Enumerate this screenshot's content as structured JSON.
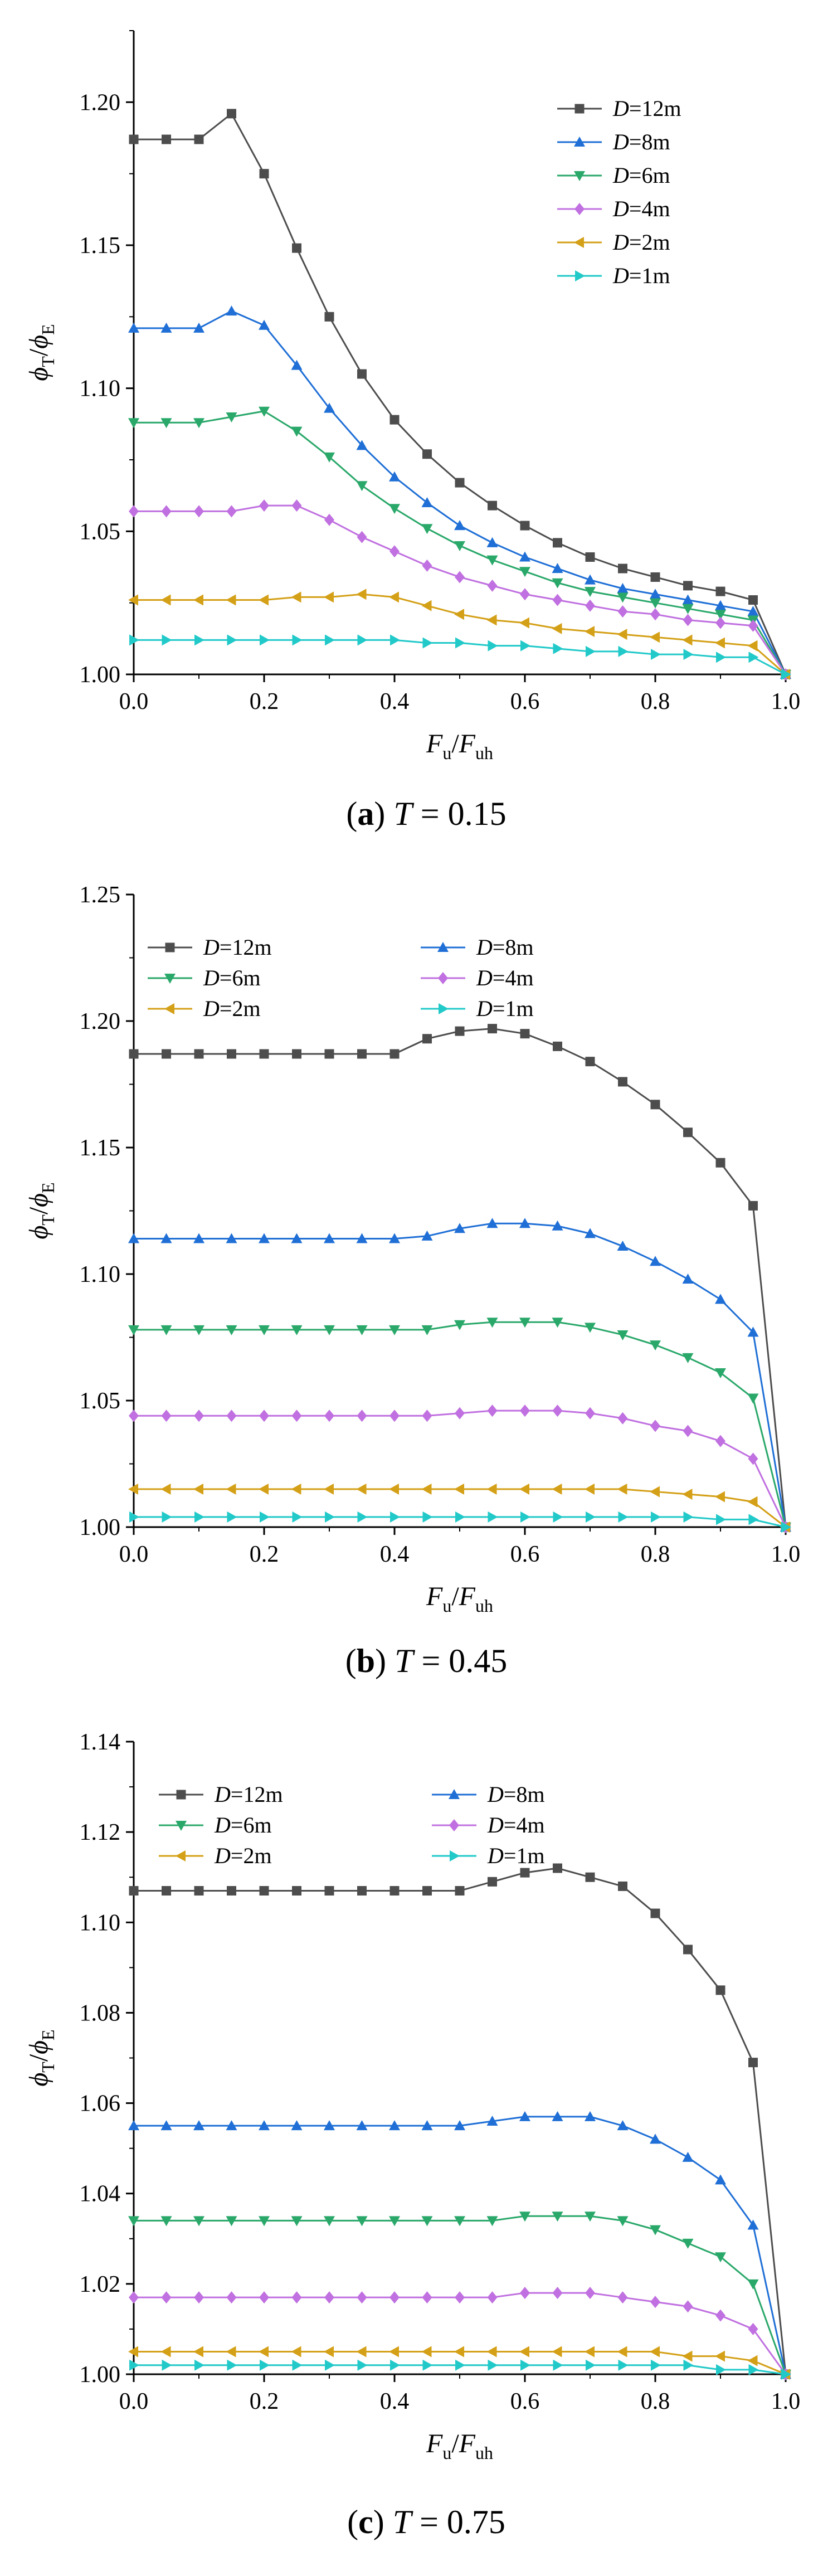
{
  "figure": {
    "captions": [
      {
        "letter": "a",
        "rest": "T = 0.15"
      },
      {
        "letter": "b",
        "rest": "T = 0.45"
      },
      {
        "letter": "c",
        "rest": "T = 0.75"
      }
    ]
  },
  "chart_data": [
    {
      "type": "line",
      "xlabel": "Fu/Fuh",
      "ylabel": "ϕT/ϕE",
      "xlim": [
        0.0,
        1.0
      ],
      "ylim": [
        1.0,
        1.225
      ],
      "xticks": [
        0.0,
        0.2,
        0.4,
        0.6,
        0.8,
        1.0
      ],
      "yticks": [
        1.0,
        1.05,
        1.1,
        1.15,
        1.2
      ],
      "legend": "top-right, one column",
      "x": [
        0.0,
        0.05,
        0.1,
        0.15,
        0.2,
        0.25,
        0.3,
        0.35,
        0.4,
        0.45,
        0.5,
        0.55,
        0.6,
        0.65,
        0.7,
        0.75,
        0.8,
        0.85,
        0.9,
        0.95,
        1.0
      ],
      "series": [
        {
          "name": "D=12m",
          "color": "#4d4d4d",
          "marker": "square",
          "values": [
            1.187,
            1.187,
            1.187,
            1.196,
            1.175,
            1.149,
            1.125,
            1.105,
            1.089,
            1.077,
            1.067,
            1.059,
            1.052,
            1.046,
            1.041,
            1.037,
            1.034,
            1.031,
            1.029,
            1.026,
            1.0
          ]
        },
        {
          "name": "D=8m",
          "color": "#1f6fd6",
          "marker": "triangle-up",
          "values": [
            1.121,
            1.121,
            1.121,
            1.127,
            1.122,
            1.108,
            1.093,
            1.08,
            1.069,
            1.06,
            1.052,
            1.046,
            1.041,
            1.037,
            1.033,
            1.03,
            1.028,
            1.026,
            1.024,
            1.022,
            1.0
          ]
        },
        {
          "name": "D=6m",
          "color": "#2aa86a",
          "marker": "triangle-down",
          "values": [
            1.088,
            1.088,
            1.088,
            1.09,
            1.092,
            1.085,
            1.076,
            1.066,
            1.058,
            1.051,
            1.045,
            1.04,
            1.036,
            1.032,
            1.029,
            1.027,
            1.025,
            1.023,
            1.021,
            1.019,
            1.0
          ]
        },
        {
          "name": "D=4m",
          "color": "#c070e0",
          "marker": "diamond",
          "values": [
            1.057,
            1.057,
            1.057,
            1.057,
            1.059,
            1.059,
            1.054,
            1.048,
            1.043,
            1.038,
            1.034,
            1.031,
            1.028,
            1.026,
            1.024,
            1.022,
            1.021,
            1.019,
            1.018,
            1.017,
            1.0
          ]
        },
        {
          "name": "D=2m",
          "color": "#d4a017",
          "marker": "triangle-left",
          "values": [
            1.026,
            1.026,
            1.026,
            1.026,
            1.026,
            1.027,
            1.027,
            1.028,
            1.027,
            1.024,
            1.021,
            1.019,
            1.018,
            1.016,
            1.015,
            1.014,
            1.013,
            1.012,
            1.011,
            1.01,
            1.0
          ]
        },
        {
          "name": "D=1m",
          "color": "#22c9c9",
          "marker": "triangle-right",
          "values": [
            1.012,
            1.012,
            1.012,
            1.012,
            1.012,
            1.012,
            1.012,
            1.012,
            1.012,
            1.011,
            1.011,
            1.01,
            1.01,
            1.009,
            1.008,
            1.008,
            1.007,
            1.007,
            1.006,
            1.006,
            1.0
          ]
        }
      ]
    },
    {
      "type": "line",
      "xlabel": "Fu/Fuh",
      "ylabel": "ϕT/ϕE",
      "xlim": [
        0.0,
        1.0
      ],
      "ylim": [
        1.0,
        1.25
      ],
      "xticks": [
        0.0,
        0.2,
        0.4,
        0.6,
        0.8,
        1.0
      ],
      "yticks": [
        1.0,
        1.05,
        1.1,
        1.15,
        1.2,
        1.25
      ],
      "legend": "top, two columns",
      "x": [
        0.0,
        0.05,
        0.1,
        0.15,
        0.2,
        0.25,
        0.3,
        0.35,
        0.4,
        0.45,
        0.5,
        0.55,
        0.6,
        0.65,
        0.7,
        0.75,
        0.8,
        0.85,
        0.9,
        0.95,
        1.0
      ],
      "series": [
        {
          "name": "D=12m",
          "color": "#4d4d4d",
          "marker": "square",
          "values": [
            1.187,
            1.187,
            1.187,
            1.187,
            1.187,
            1.187,
            1.187,
            1.187,
            1.187,
            1.193,
            1.196,
            1.197,
            1.195,
            1.19,
            1.184,
            1.176,
            1.167,
            1.156,
            1.144,
            1.127,
            1.0
          ]
        },
        {
          "name": "D=8m",
          "color": "#1f6fd6",
          "marker": "triangle-up",
          "values": [
            1.114,
            1.114,
            1.114,
            1.114,
            1.114,
            1.114,
            1.114,
            1.114,
            1.114,
            1.115,
            1.118,
            1.12,
            1.12,
            1.119,
            1.116,
            1.111,
            1.105,
            1.098,
            1.09,
            1.077,
            1.0
          ]
        },
        {
          "name": "D=6m",
          "color": "#2aa86a",
          "marker": "triangle-down",
          "values": [
            1.078,
            1.078,
            1.078,
            1.078,
            1.078,
            1.078,
            1.078,
            1.078,
            1.078,
            1.078,
            1.08,
            1.081,
            1.081,
            1.081,
            1.079,
            1.076,
            1.072,
            1.067,
            1.061,
            1.051,
            1.0
          ]
        },
        {
          "name": "D=4m",
          "color": "#c070e0",
          "marker": "diamond",
          "values": [
            1.044,
            1.044,
            1.044,
            1.044,
            1.044,
            1.044,
            1.044,
            1.044,
            1.044,
            1.044,
            1.045,
            1.046,
            1.046,
            1.046,
            1.045,
            1.043,
            1.04,
            1.038,
            1.034,
            1.027,
            1.0
          ]
        },
        {
          "name": "D=2m",
          "color": "#d4a017",
          "marker": "triangle-left",
          "values": [
            1.015,
            1.015,
            1.015,
            1.015,
            1.015,
            1.015,
            1.015,
            1.015,
            1.015,
            1.015,
            1.015,
            1.015,
            1.015,
            1.015,
            1.015,
            1.015,
            1.014,
            1.013,
            1.012,
            1.01,
            1.0
          ]
        },
        {
          "name": "D=1m",
          "color": "#22c9c9",
          "marker": "triangle-right",
          "values": [
            1.004,
            1.004,
            1.004,
            1.004,
            1.004,
            1.004,
            1.004,
            1.004,
            1.004,
            1.004,
            1.004,
            1.004,
            1.004,
            1.004,
            1.004,
            1.004,
            1.004,
            1.004,
            1.003,
            1.003,
            1.0
          ]
        }
      ]
    },
    {
      "type": "line",
      "xlabel": "Fu/Fuh",
      "ylabel": "ϕT/ϕE",
      "xlim": [
        0.0,
        1.0
      ],
      "ylim": [
        1.0,
        1.14
      ],
      "xticks": [
        0.0,
        0.2,
        0.4,
        0.6,
        0.8,
        1.0
      ],
      "yticks": [
        1.0,
        1.02,
        1.04,
        1.06,
        1.08,
        1.1,
        1.12,
        1.14
      ],
      "legend": "top, two columns",
      "x": [
        0.0,
        0.05,
        0.1,
        0.15,
        0.2,
        0.25,
        0.3,
        0.35,
        0.4,
        0.45,
        0.5,
        0.55,
        0.6,
        0.65,
        0.7,
        0.75,
        0.8,
        0.85,
        0.9,
        0.95,
        1.0
      ],
      "series": [
        {
          "name": "D=12m",
          "color": "#4d4d4d",
          "marker": "square",
          "values": [
            1.107,
            1.107,
            1.107,
            1.107,
            1.107,
            1.107,
            1.107,
            1.107,
            1.107,
            1.107,
            1.107,
            1.109,
            1.111,
            1.112,
            1.11,
            1.108,
            1.102,
            1.094,
            1.085,
            1.069,
            1.0
          ]
        },
        {
          "name": "D=8m",
          "color": "#1f6fd6",
          "marker": "triangle-up",
          "values": [
            1.055,
            1.055,
            1.055,
            1.055,
            1.055,
            1.055,
            1.055,
            1.055,
            1.055,
            1.055,
            1.055,
            1.056,
            1.057,
            1.057,
            1.057,
            1.055,
            1.052,
            1.048,
            1.043,
            1.033,
            1.0
          ]
        },
        {
          "name": "D=6m",
          "color": "#2aa86a",
          "marker": "triangle-down",
          "values": [
            1.034,
            1.034,
            1.034,
            1.034,
            1.034,
            1.034,
            1.034,
            1.034,
            1.034,
            1.034,
            1.034,
            1.034,
            1.035,
            1.035,
            1.035,
            1.034,
            1.032,
            1.029,
            1.026,
            1.02,
            1.0
          ]
        },
        {
          "name": "D=4m",
          "color": "#c070e0",
          "marker": "diamond",
          "values": [
            1.017,
            1.017,
            1.017,
            1.017,
            1.017,
            1.017,
            1.017,
            1.017,
            1.017,
            1.017,
            1.017,
            1.017,
            1.018,
            1.018,
            1.018,
            1.017,
            1.016,
            1.015,
            1.013,
            1.01,
            1.0
          ]
        },
        {
          "name": "D=2m",
          "color": "#d4a017",
          "marker": "triangle-left",
          "values": [
            1.005,
            1.005,
            1.005,
            1.005,
            1.005,
            1.005,
            1.005,
            1.005,
            1.005,
            1.005,
            1.005,
            1.005,
            1.005,
            1.005,
            1.005,
            1.005,
            1.005,
            1.004,
            1.004,
            1.003,
            1.0
          ]
        },
        {
          "name": "D=1m",
          "color": "#22c9c9",
          "marker": "triangle-right",
          "values": [
            1.002,
            1.002,
            1.002,
            1.002,
            1.002,
            1.002,
            1.002,
            1.002,
            1.002,
            1.002,
            1.002,
            1.002,
            1.002,
            1.002,
            1.002,
            1.002,
            1.002,
            1.002,
            1.001,
            1.001,
            1.0
          ]
        }
      ]
    }
  ]
}
